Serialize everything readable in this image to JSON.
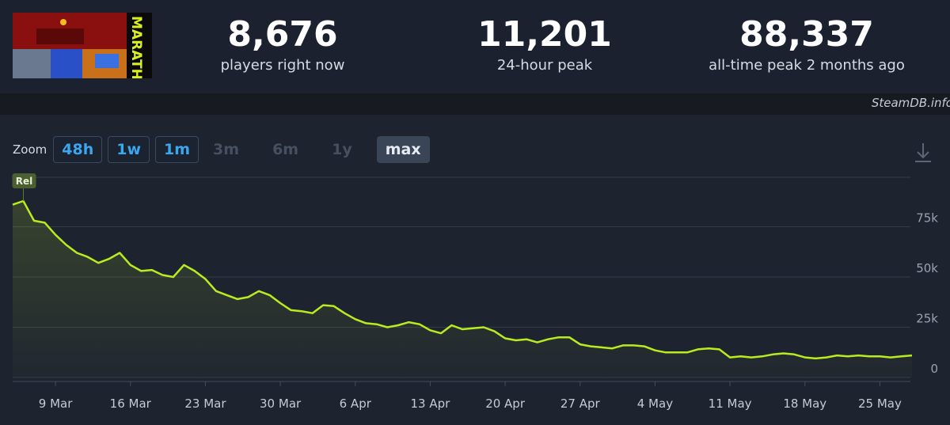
{
  "header": {
    "logo_text": "MARATHON",
    "stats": [
      {
        "value": "8,676",
        "label": "players right now"
      },
      {
        "value": "11,201",
        "label": "24-hour peak"
      },
      {
        "value": "88,337",
        "label": "all-time peak 2 months ago"
      }
    ],
    "credit": "SteamDB.info"
  },
  "zoom": {
    "label": "Zoom",
    "options": [
      {
        "label": "48h",
        "state": "enabled"
      },
      {
        "label": "1w",
        "state": "enabled"
      },
      {
        "label": "1m",
        "state": "enabled"
      },
      {
        "label": "3m",
        "state": "disabled"
      },
      {
        "label": "6m",
        "state": "disabled"
      },
      {
        "label": "1y",
        "state": "disabled"
      },
      {
        "label": "max",
        "state": "selected"
      }
    ]
  },
  "chart_data": {
    "type": "line",
    "color": "#b9ec1e",
    "grid": true,
    "x": [
      "5 Mar",
      "6 Mar",
      "7 Mar",
      "8 Mar",
      "9 Mar",
      "10 Mar",
      "11 Mar",
      "12 Mar",
      "13 Mar",
      "14 Mar",
      "15 Mar",
      "16 Mar",
      "17 Mar",
      "18 Mar",
      "19 Mar",
      "20 Mar",
      "21 Mar",
      "22 Mar",
      "23 Mar",
      "24 Mar",
      "25 Mar",
      "26 Mar",
      "27 Mar",
      "28 Mar",
      "29 Mar",
      "30 Mar",
      "31 Mar",
      "1 Apr",
      "2 Apr",
      "3 Apr",
      "4 Apr",
      "5 Apr",
      "6 Apr",
      "7 Apr",
      "8 Apr",
      "9 Apr",
      "10 Apr",
      "11 Apr",
      "12 Apr",
      "13 Apr",
      "14 Apr",
      "15 Apr",
      "16 Apr",
      "17 Apr",
      "18 Apr",
      "19 Apr",
      "20 Apr",
      "21 Apr",
      "22 Apr",
      "23 Apr",
      "24 Apr",
      "25 Apr",
      "26 Apr",
      "27 Apr",
      "28 Apr",
      "29 Apr",
      "30 Apr",
      "1 May",
      "2 May",
      "3 May",
      "4 May",
      "5 May",
      "6 May",
      "7 May",
      "8 May",
      "9 May",
      "10 May",
      "11 May",
      "12 May",
      "13 May",
      "14 May",
      "15 May",
      "16 May",
      "17 May",
      "18 May",
      "19 May",
      "20 May",
      "21 May",
      "22 May",
      "23 May",
      "24 May",
      "25 May",
      "26 May",
      "27 May",
      "28 May"
    ],
    "values": [
      86000,
      87800,
      78000,
      77000,
      71000,
      66000,
      62000,
      60000,
      57000,
      59000,
      62000,
      56000,
      53000,
      53500,
      51000,
      50000,
      56000,
      53000,
      49000,
      43000,
      41000,
      39000,
      40000,
      43000,
      41000,
      37000,
      33500,
      33000,
      32000,
      36000,
      35500,
      32000,
      29000,
      27000,
      26500,
      25000,
      26000,
      27500,
      26500,
      23500,
      22000,
      26000,
      24000,
      24500,
      25000,
      23000,
      19500,
      18500,
      19000,
      17500,
      19000,
      20000,
      20000,
      16500,
      15500,
      15000,
      14500,
      16000,
      16000,
      15500,
      13500,
      12500,
      12500,
      12500,
      14000,
      14500,
      14000,
      10000,
      10500,
      10000,
      10500,
      11500,
      12000,
      11500,
      10000,
      9500,
      10000,
      11000,
      10500,
      11000,
      10500,
      10500,
      10000,
      10500,
      11000
    ],
    "xticks": [
      "9 Mar",
      "16 Mar",
      "23 Mar",
      "30 Mar",
      "6 Apr",
      "13 Apr",
      "20 Apr",
      "27 Apr",
      "4 May",
      "11 May",
      "18 May",
      "25 May"
    ],
    "ylim": [
      0,
      100000
    ],
    "yticks": [
      0,
      {
        "value": 25000,
        "label": "25k"
      },
      {
        "value": 50000,
        "label": "50k"
      },
      {
        "value": 75000,
        "label": "75k"
      }
    ],
    "annotations": [
      {
        "label": "Rel",
        "x": "6 Mar"
      }
    ]
  }
}
